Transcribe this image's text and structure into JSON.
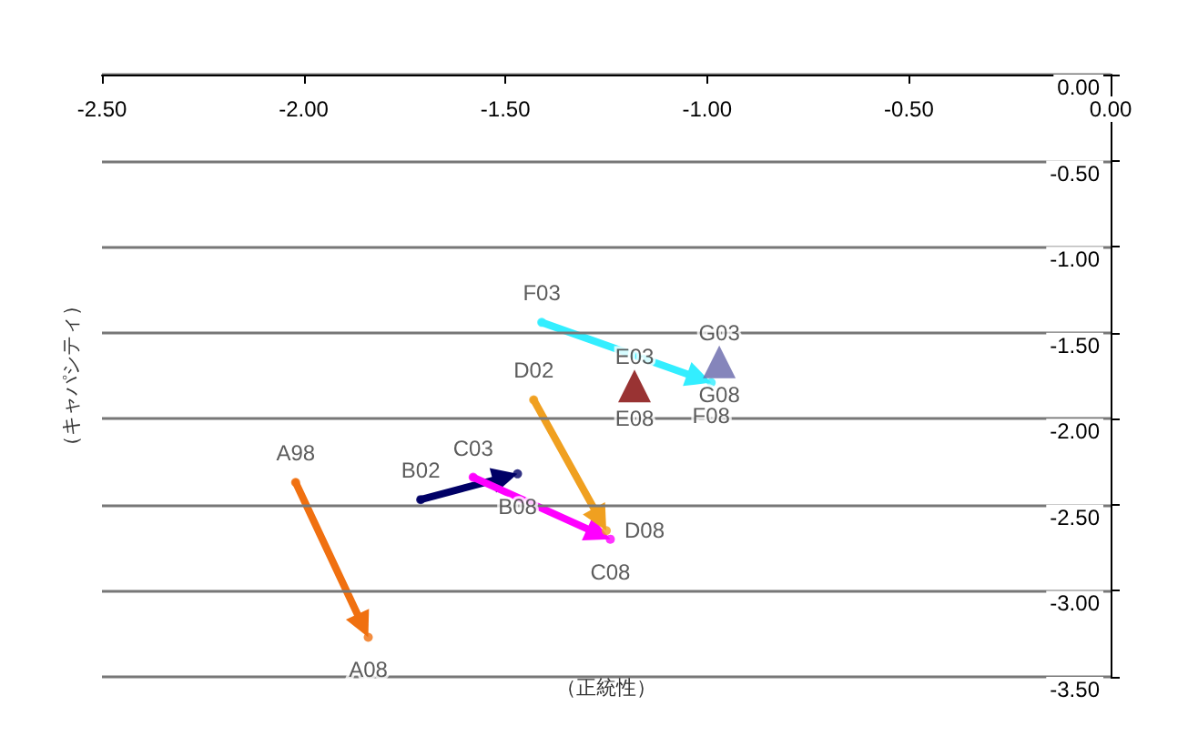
{
  "chart_data": {
    "type": "scatter",
    "marker": "circle",
    "xlabel": "（正統性）",
    "ylabel": "（キャパシティ）",
    "xlim": [
      -2.5,
      0
    ],
    "xticks": [
      {
        "value": -2.5,
        "label": "-2.50"
      },
      {
        "value": -2,
        "label": "-2.00"
      },
      {
        "value": -1.5,
        "label": "-1.50"
      },
      {
        "value": -1,
        "label": "-1.00"
      },
      {
        "value": -0.5,
        "label": "-0.50"
      },
      {
        "value": 0,
        "label": "0.00"
      }
    ],
    "ylim": [
      -3.5,
      0
    ],
    "yticks": [
      {
        "value": -3.5,
        "label": "-3.50"
      },
      {
        "value": -3,
        "label": "-3.00"
      },
      {
        "value": -2.5,
        "label": "-2.50"
      },
      {
        "value": -2,
        "label": "-2.00"
      },
      {
        "value": -1.5,
        "label": "-1.50"
      },
      {
        "value": -1,
        "label": "-1.00"
      },
      {
        "value": -0.5,
        "label": "-0.50"
      },
      {
        "value": 0,
        "label": "0.00"
      }
    ],
    "grid": "y",
    "series": [
      {
        "color": "#f07010",
        "x": [
          -2.02,
          -1.84
        ],
        "values": [
          -2.37,
          -3.27
        ]
      },
      {
        "color": "#000066",
        "x": [
          -1.71,
          -1.47
        ],
        "values": [
          -2.47,
          -2.32
        ]
      },
      {
        "color": "#ff00ff",
        "x": [
          -1.58,
          -1.24
        ],
        "values": [
          -2.34,
          -2.7
        ]
      },
      {
        "color": "#f0a020",
        "x": [
          -1.43,
          -1.25
        ],
        "values": [
          -1.89,
          -2.65
        ]
      },
      {
        "marker": "triangle",
        "color": "#800000",
        "x": [
          -1.18
        ],
        "values": [
          -1.81
        ]
      },
      {
        "color": "#33eeff",
        "x": [
          -1.41,
          -0.99
        ],
        "values": [
          -1.44,
          -1.79
        ]
      },
      {
        "marker": "triangle",
        "color": "#6666aa",
        "x": [
          -0.97
        ],
        "values": [
          -1.67
        ]
      }
    ],
    "annotations": [
      {
        "text": "A98",
        "x": -2.02,
        "y": -2.37
      },
      {
        "text": "A08",
        "x": -1.84,
        "y": -3.27
      },
      {
        "text": "B02",
        "x": -1.71,
        "y": -2.47
      },
      {
        "text": "B08",
        "x": -1.47,
        "y": -2.32
      },
      {
        "text": "C03",
        "x": -1.58,
        "y": -2.34
      },
      {
        "text": "C08",
        "x": -1.24,
        "y": -2.7
      },
      {
        "text": "D02",
        "x": -1.43,
        "y": -1.89
      },
      {
        "text": "D08",
        "x": -1.25,
        "y": -2.65
      },
      {
        "text": "E03",
        "x": -1.18,
        "y": -1.81
      },
      {
        "text": "E08",
        "x": -1.18,
        "y": -1.81
      },
      {
        "text": "F03",
        "x": -1.41,
        "y": -1.44
      },
      {
        "text": "F08",
        "x": -0.99,
        "y": -1.79
      },
      {
        "text": "G03",
        "x": -0.97,
        "y": -1.67
      },
      {
        "text": "G08",
        "x": -0.97,
        "y": -1.67
      }
    ]
  }
}
